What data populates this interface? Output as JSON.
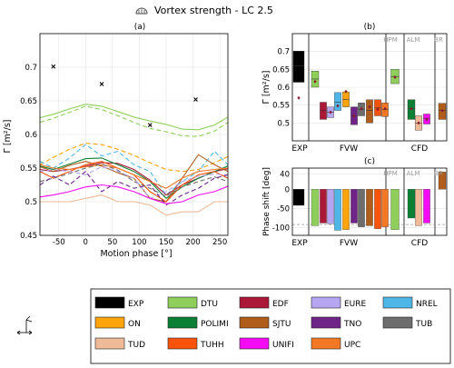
{
  "header": {
    "title": "Vortex strength - LC 2.5",
    "icon": "turbine-icon"
  },
  "colors": {
    "EXP": "#000000",
    "DTU": "#8fce5a",
    "EDF": "#ab1838",
    "EURE": "#b6a6f2",
    "NREL": "#4fb7e7",
    "ON": "#fca40b",
    "POLIMI": "#0b8034",
    "SJTU": "#b05d1c",
    "TNO": "#6f2588",
    "TUB": "#6d6d6d",
    "TUD": "#eeba97",
    "TUHH": "#f7530a",
    "UNIFI": "#f40bf4",
    "UPC": "#f27826"
  },
  "legend": {
    "items": [
      "EXP",
      "DTU",
      "EDF",
      "EURE",
      "NREL",
      "ON",
      "POLIMI",
      "SJTU",
      "TNO",
      "TUB",
      "TUD",
      "TUHH",
      "UNIFI",
      "UPC"
    ],
    "icon": "motion-sketch-icon"
  },
  "chart_data": [
    {
      "type": "line",
      "panel_label": "(a)",
      "xlabel": "Motion phase [°]",
      "ylabel": "Γ [m²/s]",
      "xlim": [
        -85,
        265
      ],
      "ylim": [
        0.45,
        0.75
      ],
      "xticks": [
        -50,
        0,
        50,
        100,
        150,
        200,
        250
      ],
      "yticks": [
        0.45,
        0.5,
        0.55,
        0.6,
        0.65,
        0.7
      ],
      "grid": true,
      "x": [
        -85,
        -60,
        -30,
        0,
        30,
        60,
        90,
        120,
        150,
        180,
        210,
        240,
        265
      ],
      "markers": {
        "name": "EXP",
        "x": [
          -60,
          30,
          120,
          205
        ],
        "y": [
          0.701,
          0.675,
          0.614,
          0.652
        ]
      },
      "series": [
        {
          "name": "DTU",
          "values": [
            0.625,
            0.63,
            0.638,
            0.645,
            0.642,
            0.634,
            0.626,
            0.62,
            0.615,
            0.608,
            0.607,
            0.614,
            0.626
          ],
          "dash": "solid"
        },
        {
          "name": "DTU",
          "values": [
            0.618,
            0.624,
            0.633,
            0.642,
            0.637,
            0.628,
            0.618,
            0.609,
            0.604,
            0.598,
            0.597,
            0.605,
            0.618
          ],
          "dash": "dashed"
        },
        {
          "name": "ON",
          "values": [
            0.555,
            0.566,
            0.578,
            0.587,
            0.585,
            0.578,
            0.569,
            0.558,
            0.548,
            0.545,
            0.548,
            0.558,
            0.567
          ],
          "dash": "dashed"
        },
        {
          "name": "NREL",
          "values": [
            0.56,
            0.55,
            0.565,
            0.585,
            0.568,
            0.575,
            0.555,
            0.545,
            0.51,
            0.53,
            0.545,
            0.575,
            0.555
          ],
          "dash": "dashed"
        },
        {
          "name": "EDF",
          "values": [
            0.548,
            0.545,
            0.548,
            0.553,
            0.558,
            0.557,
            0.548,
            0.532,
            0.51,
            0.525,
            0.535,
            0.545,
            0.549
          ],
          "dash": "solid"
        },
        {
          "name": "POLIMI",
          "values": [
            0.553,
            0.548,
            0.556,
            0.564,
            0.565,
            0.555,
            0.545,
            0.53,
            0.505,
            0.522,
            0.535,
            0.545,
            0.553
          ],
          "dash": "solid"
        },
        {
          "name": "SJTU",
          "values": [
            0.552,
            0.545,
            0.554,
            0.56,
            0.553,
            0.543,
            0.535,
            0.505,
            0.5,
            0.535,
            0.57,
            0.555,
            0.545
          ],
          "dash": "solid"
        },
        {
          "name": "TUHH",
          "values": [
            0.545,
            0.535,
            0.545,
            0.555,
            0.56,
            0.55,
            0.54,
            0.515,
            0.5,
            0.525,
            0.54,
            0.545,
            0.535
          ],
          "dash": "solid"
        },
        {
          "name": "UPC",
          "values": [
            0.555,
            0.55,
            0.548,
            0.552,
            0.555,
            0.55,
            0.54,
            0.53,
            0.52,
            0.535,
            0.545,
            0.548,
            0.55
          ],
          "dash": "solid"
        },
        {
          "name": "TUB",
          "values": [
            0.53,
            0.535,
            0.542,
            0.55,
            0.556,
            0.547,
            0.53,
            0.52,
            0.508,
            0.522,
            0.53,
            0.537,
            0.53
          ],
          "dash": "dashed"
        },
        {
          "name": "EURE",
          "values": [
            0.545,
            0.548,
            0.545,
            0.54,
            0.552,
            0.545,
            0.535,
            0.505,
            0.515,
            0.53,
            0.538,
            0.541,
            0.54
          ],
          "dash": "dashed"
        },
        {
          "name": "TNO",
          "values": [
            0.525,
            0.538,
            0.525,
            0.545,
            0.515,
            0.53,
            0.52,
            0.525,
            0.495,
            0.51,
            0.52,
            0.535,
            0.54
          ],
          "dash": "dashed"
        },
        {
          "name": "UNIFI",
          "values": [
            0.507,
            0.51,
            0.515,
            0.522,
            0.525,
            0.522,
            0.515,
            0.505,
            0.497,
            0.5,
            0.51,
            0.515,
            0.523
          ],
          "dash": "solid"
        },
        {
          "name": "TUD",
          "values": [
            0.5,
            0.5,
            0.5,
            0.505,
            0.51,
            0.5,
            0.5,
            0.495,
            0.48,
            0.485,
            0.485,
            0.5,
            0.5
          ],
          "dash": "solid"
        }
      ]
    },
    {
      "type": "box",
      "panel_label": "(b)",
      "ylabel": "Γ [m²/s]",
      "ylim": [
        0.45,
        0.75
      ],
      "yticks": [
        0.5,
        0.55,
        0.6,
        0.65,
        0.7
      ],
      "groups": [
        "EXP",
        "FVW",
        "CFD"
      ],
      "method_labels": [
        "HPM",
        "ALM",
        "BR"
      ],
      "grid": true,
      "boxes": [
        {
          "name": "EXP",
          "low": 0.614,
          "high": 0.701,
          "mean": 0.66,
          "marker": 0.57
        },
        {
          "name": "DTU",
          "low": 0.6,
          "high": 0.645,
          "mean": 0.623,
          "marker": 0.616
        },
        {
          "name": "EDF",
          "low": 0.51,
          "high": 0.558,
          "mean": 0.535,
          "marker": 0.535
        },
        {
          "name": "EURE",
          "low": 0.515,
          "high": 0.545,
          "mean": 0.53,
          "marker": 0.53
        },
        {
          "name": "NREL",
          "low": 0.535,
          "high": 0.585,
          "mean": 0.558,
          "marker": 0.548
        },
        {
          "name": "ON",
          "low": 0.545,
          "high": 0.587,
          "mean": 0.566,
          "marker": 0.588
        },
        {
          "name": "TNO",
          "low": 0.495,
          "high": 0.545,
          "mean": 0.52,
          "marker": 0.52
        },
        {
          "name": "TUB",
          "low": 0.52,
          "high": 0.556,
          "mean": 0.538,
          "marker": 0.54
        },
        {
          "name": "SJTU",
          "low": 0.5,
          "high": 0.565,
          "mean": 0.535,
          "marker": 0.545
        },
        {
          "name": "TUHH",
          "low": 0.52,
          "high": 0.565,
          "mean": 0.542,
          "marker": 0.538
        },
        {
          "name": "UPC",
          "low": 0.518,
          "high": 0.556,
          "mean": 0.538,
          "marker": 0.54
        },
        {
          "name": "DTU",
          "low": 0.61,
          "high": 0.65,
          "mean": 0.63,
          "marker": 0.628
        },
        {
          "name": "POLIMI",
          "low": 0.51,
          "high": 0.565,
          "mean": 0.54,
          "marker": 0.54
        },
        {
          "name": "TUD",
          "low": 0.48,
          "high": 0.52,
          "mean": 0.5,
          "marker": 0.5
        },
        {
          "name": "UNIFI",
          "low": 0.497,
          "high": 0.525,
          "mean": 0.513,
          "marker": 0.51
        },
        {
          "name": "SJTU",
          "low": 0.51,
          "high": 0.555,
          "mean": 0.535,
          "marker": 0.535
        }
      ]
    },
    {
      "type": "bar",
      "panel_label": "(c)",
      "ylabel": "Phase shift [deg]",
      "ylim": [
        -120,
        55
      ],
      "yticks": [
        -100,
        -50,
        0,
        40
      ],
      "groups": [
        "EXP",
        "FVW",
        "CFD"
      ],
      "method_labels": [
        "HPM",
        "ALM",
        "BR"
      ],
      "grid": true,
      "reference_line": -92,
      "bars": [
        {
          "name": "EXP",
          "value": -42
        },
        {
          "name": "DTU",
          "value": -95
        },
        {
          "name": "EDF",
          "value": -88
        },
        {
          "name": "EURE",
          "value": -90
        },
        {
          "name": "NREL",
          "value": -107
        },
        {
          "name": "ON",
          "value": -105
        },
        {
          "name": "TNO",
          "value": -88
        },
        {
          "name": "TUB",
          "value": -98
        },
        {
          "name": "SJTU",
          "value": -95
        },
        {
          "name": "TUHH",
          "value": -103
        },
        {
          "name": "UPC",
          "value": -98
        },
        {
          "name": "DTU",
          "value": -105
        },
        {
          "name": "POLIMI",
          "value": -75
        },
        {
          "name": "TUD",
          "value": -95
        },
        {
          "name": "UNIFI",
          "value": -88
        },
        {
          "name": "SJTU",
          "value": 45
        }
      ]
    }
  ]
}
